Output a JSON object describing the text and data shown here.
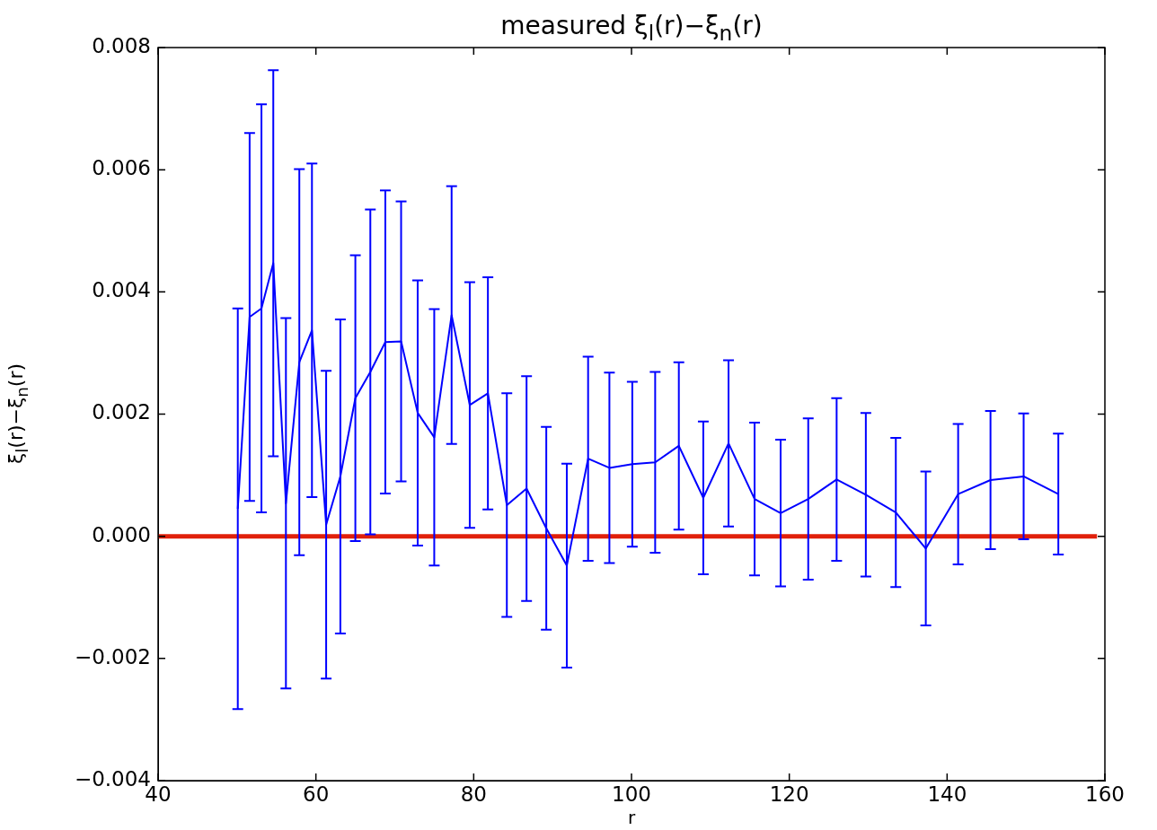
{
  "chart_data": {
    "type": "line",
    "title": "measured ξ$_{l}$(r)−ξ$_{n}$(r)",
    "xlabel": "r",
    "ylabel": "ξ$_{l}$(r)−ξ$_{n}$(r)",
    "xlim": [
      40,
      160
    ],
    "xticks": [
      40,
      60,
      80,
      100,
      120,
      140,
      160
    ],
    "ylim": [
      -0.004,
      0.008
    ],
    "yticks": [
      {
        "value": -0.004,
        "label": "−0.004"
      },
      {
        "value": -0.002,
        "label": "−0.002"
      },
      {
        "value": 0,
        "label": "0.000"
      },
      {
        "value": 0.002,
        "label": "0.002"
      },
      {
        "value": 0.004,
        "label": "0.004"
      },
      {
        "value": 0.006,
        "label": "0.006"
      },
      {
        "value": 0.008,
        "label": "0.008"
      }
    ],
    "grid": false,
    "legend": false,
    "marker": "none",
    "line_style": "solid",
    "series": [
      {
        "type": "line",
        "color": "#0000ff",
        "x": [
          50.1,
          51.6,
          53.1,
          54.6,
          56.2,
          57.9,
          59.5,
          61.3,
          63.1,
          65.0,
          66.9,
          68.8,
          70.8,
          72.9,
          75.0,
          77.2,
          79.5,
          81.8,
          84.2,
          86.7,
          89.2,
          91.8,
          94.5,
          97.2,
          100.1,
          103.0,
          106.0,
          109.1,
          112.3,
          115.6,
          118.9,
          122.4,
          126.0,
          129.7,
          133.5,
          137.3,
          141.4,
          145.5,
          149.7,
          154.1
        ],
        "values": [
          0.00045,
          0.00359,
          0.00373,
          0.00447,
          0.00054,
          0.00285,
          0.00337,
          0.00019,
          0.00098,
          0.00226,
          0.00269,
          0.00318,
          0.00319,
          0.00202,
          0.00162,
          0.00362,
          0.00215,
          0.00234,
          0.00051,
          0.00078,
          0.00013,
          -0.00048,
          0.00127,
          0.00112,
          0.00118,
          0.00121,
          0.00148,
          0.00063,
          0.00152,
          0.00061,
          0.00038,
          0.00061,
          0.00093,
          0.00068,
          0.00039,
          -0.0002,
          0.00069,
          0.00092,
          0.00098,
          0.00069
        ],
        "errors": [
          0.00328,
          0.00301,
          0.00334,
          0.00316,
          0.00303,
          0.00316,
          0.00273,
          0.00252,
          0.00257,
          0.00234,
          0.00266,
          0.00248,
          0.00229,
          0.00217,
          0.0021,
          0.00211,
          0.00201,
          0.0019,
          0.00183,
          0.00184,
          0.00166,
          0.00167,
          0.00167,
          0.00156,
          0.00135,
          0.00148,
          0.00137,
          0.00125,
          0.00136,
          0.00125,
          0.0012,
          0.00132,
          0.00133,
          0.00134,
          0.00122,
          0.00126,
          0.00115,
          0.00113,
          0.00103,
          0.00099
        ]
      },
      {
        "type": "line",
        "color": "#e0200a",
        "x": [
          40,
          159
        ],
        "values": [
          0,
          0
        ]
      }
    ]
  }
}
